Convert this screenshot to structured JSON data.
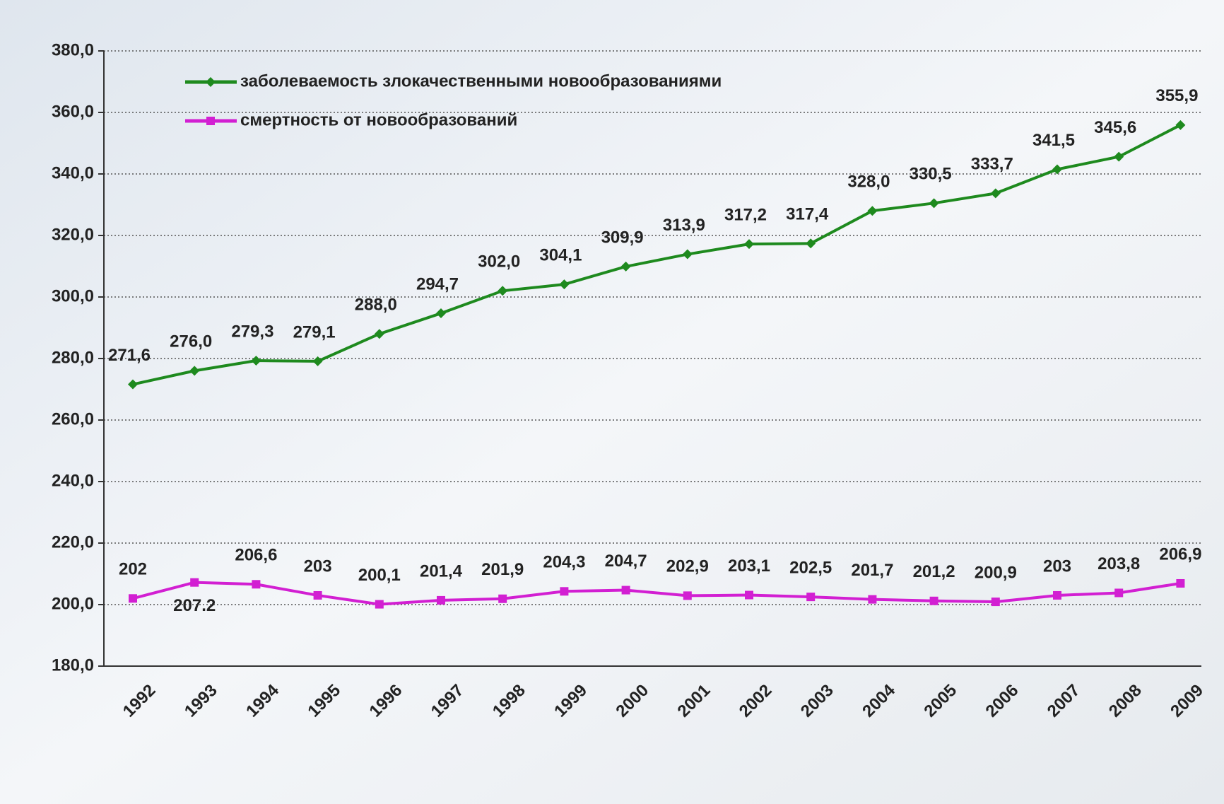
{
  "chart_data": {
    "type": "line",
    "categories": [
      "1992",
      "1993",
      "1994",
      "1995",
      "1996",
      "1997",
      "1998",
      "1999",
      "2000",
      "2001",
      "2002",
      "2003",
      "2004",
      "2005",
      "2006",
      "2007",
      "2008",
      "2009"
    ],
    "series": [
      {
        "name": "заболеваемость злокачественными новообразованиями",
        "color": "#1e8a1e",
        "values": [
          271.6,
          276.0,
          279.3,
          279.1,
          288.0,
          294.7,
          302.0,
          304.1,
          309.9,
          313.9,
          317.2,
          317.4,
          328.0,
          330.5,
          333.7,
          341.5,
          345.6,
          355.9
        ],
        "value_labels": [
          "271,6",
          "276,0",
          "279,3",
          "279,1",
          "288,0",
          "294,7",
          "302,0",
          "304,1",
          "309,9",
          "313,9",
          "317,2",
          "317,4",
          "328,0",
          "330,5",
          "333,7",
          "341,5",
          "345,6",
          "355,9"
        ]
      },
      {
        "name": "смертность от новообразований",
        "color": "#d21fd2",
        "values": [
          202,
          207.2,
          206.6,
          203,
          200.1,
          201.4,
          201.9,
          204.3,
          204.7,
          202.9,
          203.1,
          202.5,
          201.7,
          201.2,
          200.9,
          203,
          203.8,
          206.9
        ],
        "value_labels": [
          "202",
          "207.2",
          "206,6",
          "203",
          "200,1",
          "201,4",
          "201,9",
          "204,3",
          "204,7",
          "202,9",
          "203,1",
          "202,5",
          "201,7",
          "201,2",
          "200,9",
          "203",
          "203,8",
          "206,9"
        ]
      }
    ],
    "ylim": [
      180,
      380
    ],
    "yticks": [
      {
        "value": 180,
        "label": "180,0"
      },
      {
        "value": 200,
        "label": "200,0"
      },
      {
        "value": 220,
        "label": "220,0"
      },
      {
        "value": 240,
        "label": "240,0"
      },
      {
        "value": 260,
        "label": "260,0"
      },
      {
        "value": 280,
        "label": "280,0"
      },
      {
        "value": 300,
        "label": "300,0"
      },
      {
        "value": 320,
        "label": "320,0"
      },
      {
        "value": 340,
        "label": "340,0"
      },
      {
        "value": 360,
        "label": "360,0"
      },
      {
        "value": 380,
        "label": "380,0"
      }
    ],
    "grid": true
  }
}
